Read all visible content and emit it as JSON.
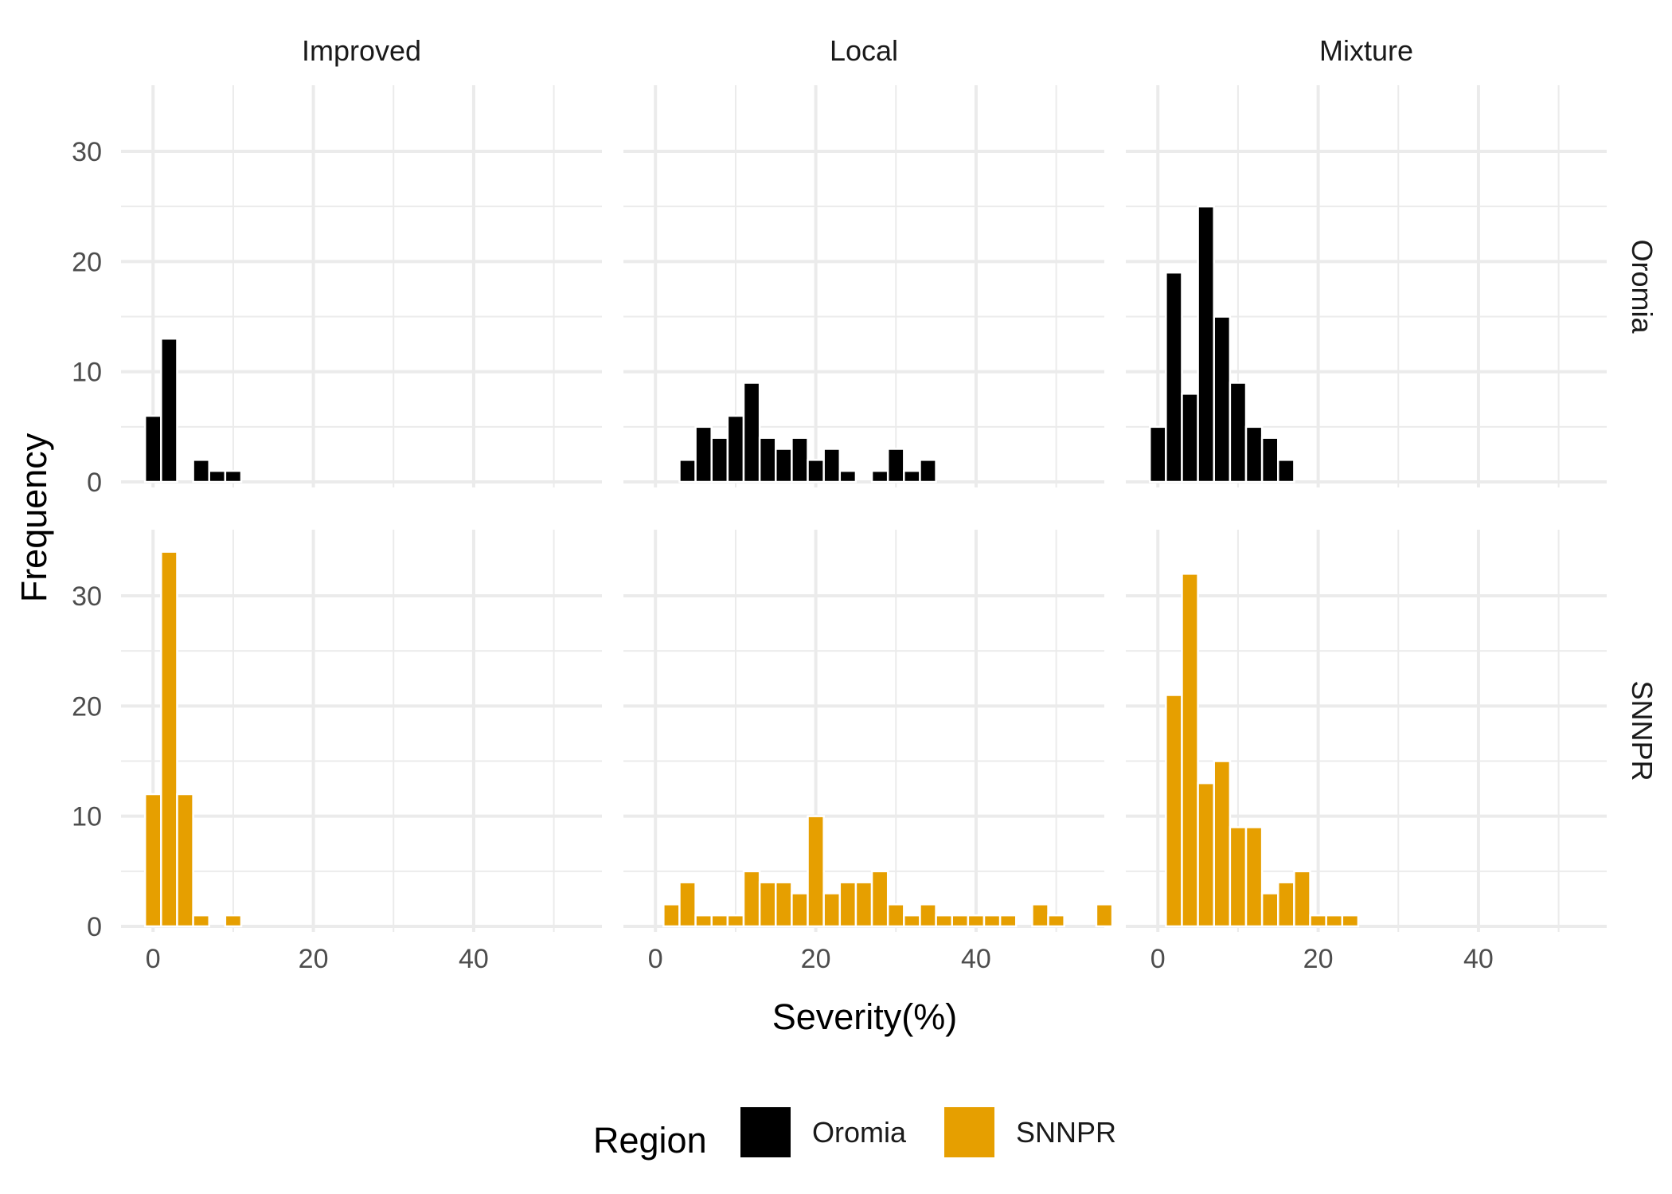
{
  "chart_data": {
    "type": "bar",
    "subtype": "faceted-histogram",
    "xlabel": "Severity(%)",
    "ylabel": "Frequency",
    "xlim": [
      -4,
      56
    ],
    "ylim": [
      0,
      36
    ],
    "x_ticks": [
      0,
      20,
      40
    ],
    "y_ticks": [
      0,
      10,
      20,
      30
    ],
    "bin_width": 2,
    "grid": true,
    "column_facets": [
      "Improved",
      "Local",
      "Mixture"
    ],
    "row_facets": [
      "Oromia",
      "SNNPR"
    ],
    "legend": {
      "title": "Region",
      "position": "bottom",
      "entries": [
        {
          "label": "Oromia",
          "color": "#000000"
        },
        {
          "label": "SNNPR",
          "color": "#E69F00"
        }
      ]
    },
    "panels": [
      {
        "row": "Oromia",
        "col": "Improved",
        "color": "#000000",
        "bars": [
          {
            "x": 0,
            "y": 6
          },
          {
            "x": 2,
            "y": 13
          },
          {
            "x": 6,
            "y": 2
          },
          {
            "x": 8,
            "y": 1
          },
          {
            "x": 10,
            "y": 1
          }
        ]
      },
      {
        "row": "Oromia",
        "col": "Local",
        "color": "#000000",
        "bars": [
          {
            "x": 4,
            "y": 2
          },
          {
            "x": 6,
            "y": 5
          },
          {
            "x": 8,
            "y": 4
          },
          {
            "x": 10,
            "y": 6
          },
          {
            "x": 12,
            "y": 9
          },
          {
            "x": 14,
            "y": 4
          },
          {
            "x": 16,
            "y": 3
          },
          {
            "x": 18,
            "y": 4
          },
          {
            "x": 20,
            "y": 2
          },
          {
            "x": 22,
            "y": 3
          },
          {
            "x": 24,
            "y": 1
          },
          {
            "x": 28,
            "y": 1
          },
          {
            "x": 30,
            "y": 3
          },
          {
            "x": 32,
            "y": 1
          },
          {
            "x": 34,
            "y": 2
          }
        ]
      },
      {
        "row": "Oromia",
        "col": "Mixture",
        "color": "#000000",
        "bars": [
          {
            "x": 0,
            "y": 5
          },
          {
            "x": 2,
            "y": 19
          },
          {
            "x": 4,
            "y": 8
          },
          {
            "x": 6,
            "y": 25
          },
          {
            "x": 8,
            "y": 15
          },
          {
            "x": 10,
            "y": 9
          },
          {
            "x": 12,
            "y": 5
          },
          {
            "x": 14,
            "y": 4
          },
          {
            "x": 16,
            "y": 2
          }
        ]
      },
      {
        "row": "SNNPR",
        "col": "Improved",
        "color": "#E69F00",
        "bars": [
          {
            "x": 0,
            "y": 12
          },
          {
            "x": 2,
            "y": 34
          },
          {
            "x": 4,
            "y": 12
          },
          {
            "x": 6,
            "y": 1
          },
          {
            "x": 10,
            "y": 1
          }
        ]
      },
      {
        "row": "SNNPR",
        "col": "Local",
        "color": "#E69F00",
        "bars": [
          {
            "x": 2,
            "y": 2
          },
          {
            "x": 4,
            "y": 4
          },
          {
            "x": 6,
            "y": 1
          },
          {
            "x": 8,
            "y": 1
          },
          {
            "x": 10,
            "y": 1
          },
          {
            "x": 12,
            "y": 5
          },
          {
            "x": 14,
            "y": 4
          },
          {
            "x": 16,
            "y": 4
          },
          {
            "x": 18,
            "y": 3
          },
          {
            "x": 20,
            "y": 10
          },
          {
            "x": 22,
            "y": 3
          },
          {
            "x": 24,
            "y": 4
          },
          {
            "x": 26,
            "y": 4
          },
          {
            "x": 28,
            "y": 5
          },
          {
            "x": 30,
            "y": 2
          },
          {
            "x": 32,
            "y": 1
          },
          {
            "x": 34,
            "y": 2
          },
          {
            "x": 36,
            "y": 1
          },
          {
            "x": 38,
            "y": 1
          },
          {
            "x": 40,
            "y": 1
          },
          {
            "x": 42,
            "y": 1
          },
          {
            "x": 44,
            "y": 1
          },
          {
            "x": 48,
            "y": 2
          },
          {
            "x": 50,
            "y": 1
          },
          {
            "x": 56,
            "y": 2
          }
        ]
      },
      {
        "row": "SNNPR",
        "col": "Mixture",
        "color": "#E69F00",
        "bars": [
          {
            "x": 2,
            "y": 21
          },
          {
            "x": 4,
            "y": 32
          },
          {
            "x": 6,
            "y": 13
          },
          {
            "x": 8,
            "y": 15
          },
          {
            "x": 10,
            "y": 9
          },
          {
            "x": 12,
            "y": 9
          },
          {
            "x": 14,
            "y": 3
          },
          {
            "x": 16,
            "y": 4
          },
          {
            "x": 18,
            "y": 5
          },
          {
            "x": 20,
            "y": 1
          },
          {
            "x": 22,
            "y": 1
          },
          {
            "x": 24,
            "y": 1
          }
        ]
      }
    ]
  }
}
